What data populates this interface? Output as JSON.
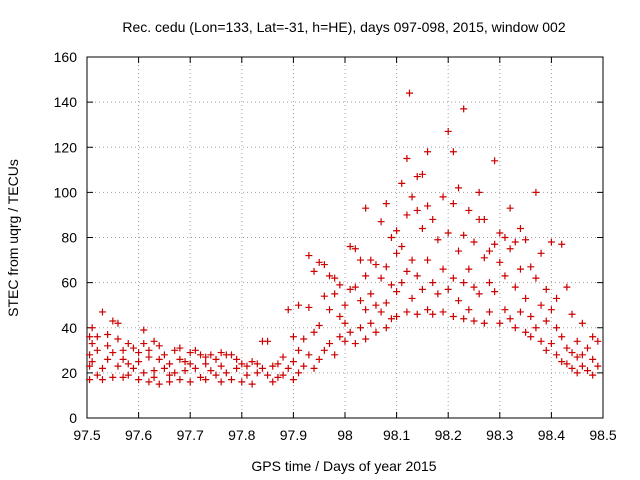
{
  "chart_data": {
    "type": "scatter",
    "title": "Rec. cedu (Lon=133, Lat=-31, h=HE), days 097-098, 2015, window 002",
    "xlabel": "GPS time / Days of year 2015",
    "ylabel": "STEC from uqrg / TECUs",
    "xlim": [
      97.5,
      98.5
    ],
    "ylim": [
      0,
      160
    ],
    "xticks": [
      97.5,
      97.6,
      97.7,
      97.8,
      97.9,
      98,
      98.1,
      98.2,
      98.3,
      98.4,
      98.5
    ],
    "xtick_labels": [
      "97.5",
      "97.6",
      "97.7",
      "97.8",
      "97.9",
      "98",
      "98.1",
      "98.2",
      "98.3",
      "98.4",
      "98.5"
    ],
    "yticks": [
      0,
      20,
      40,
      60,
      80,
      100,
      120,
      140,
      160
    ],
    "ytick_labels": [
      "0",
      "20",
      "40",
      "60",
      "80",
      "100",
      "120",
      "140",
      "160"
    ],
    "grid": true,
    "marker": "+",
    "marker_color": "#cc0000",
    "series": [
      {
        "name": "STEC",
        "points": [
          [
            97.505,
            36
          ],
          [
            97.505,
            28
          ],
          [
            97.505,
            23
          ],
          [
            97.505,
            17
          ],
          [
            97.51,
            40
          ],
          [
            97.51,
            33
          ],
          [
            97.51,
            25
          ],
          [
            97.52,
            30
          ],
          [
            97.52,
            36
          ],
          [
            97.52,
            19
          ],
          [
            97.53,
            47
          ],
          [
            97.53,
            22
          ],
          [
            97.53,
            17
          ],
          [
            97.54,
            37
          ],
          [
            97.54,
            32
          ],
          [
            97.54,
            26
          ],
          [
            97.55,
            43
          ],
          [
            97.55,
            29
          ],
          [
            97.55,
            18
          ],
          [
            97.56,
            42
          ],
          [
            97.56,
            35
          ],
          [
            97.56,
            23
          ],
          [
            97.57,
            30
          ],
          [
            97.57,
            26
          ],
          [
            97.57,
            18
          ],
          [
            97.58,
            33
          ],
          [
            97.58,
            24
          ],
          [
            97.58,
            19
          ],
          [
            97.59,
            31
          ],
          [
            97.59,
            22
          ],
          [
            97.6,
            29
          ],
          [
            97.6,
            25
          ],
          [
            97.6,
            17
          ],
          [
            97.61,
            39
          ],
          [
            97.61,
            33
          ],
          [
            97.61,
            20
          ],
          [
            97.62,
            30
          ],
          [
            97.62,
            27
          ],
          [
            97.62,
            16
          ],
          [
            97.63,
            34
          ],
          [
            97.63,
            21
          ],
          [
            97.63,
            18
          ],
          [
            97.64,
            32
          ],
          [
            97.64,
            26
          ],
          [
            97.64,
            15
          ],
          [
            97.65,
            28
          ],
          [
            97.65,
            22
          ],
          [
            97.66,
            24
          ],
          [
            97.66,
            19
          ],
          [
            97.66,
            16
          ],
          [
            97.67,
            30
          ],
          [
            97.67,
            20
          ],
          [
            97.68,
            31
          ],
          [
            97.68,
            26
          ],
          [
            97.68,
            17
          ],
          [
            97.69,
            25
          ],
          [
            97.69,
            21
          ],
          [
            97.7,
            29
          ],
          [
            97.7,
            24
          ],
          [
            97.7,
            16
          ],
          [
            97.71,
            30
          ],
          [
            97.71,
            22
          ],
          [
            97.72,
            28
          ],
          [
            97.72,
            18
          ],
          [
            97.73,
            27
          ],
          [
            97.73,
            24
          ],
          [
            97.73,
            17
          ],
          [
            97.74,
            28
          ],
          [
            97.74,
            21
          ],
          [
            97.75,
            26
          ],
          [
            97.75,
            19
          ],
          [
            97.76,
            29
          ],
          [
            97.76,
            23
          ],
          [
            97.76,
            16
          ],
          [
            97.77,
            28
          ],
          [
            97.77,
            20
          ],
          [
            97.78,
            28
          ],
          [
            97.78,
            17
          ],
          [
            97.79,
            26
          ],
          [
            97.79,
            22
          ],
          [
            97.8,
            24
          ],
          [
            97.8,
            16
          ],
          [
            97.81,
            23
          ],
          [
            97.81,
            19
          ],
          [
            97.82,
            25
          ],
          [
            97.82,
            15
          ],
          [
            97.83,
            24
          ],
          [
            97.83,
            20
          ],
          [
            97.84,
            34
          ],
          [
            97.84,
            22
          ],
          [
            97.85,
            34
          ],
          [
            97.85,
            19
          ],
          [
            97.86,
            23
          ],
          [
            97.86,
            16
          ],
          [
            97.87,
            24
          ],
          [
            97.87,
            18
          ],
          [
            97.88,
            27
          ],
          [
            97.88,
            19
          ],
          [
            97.89,
            48
          ],
          [
            97.89,
            22
          ],
          [
            97.9,
            36
          ],
          [
            97.9,
            25
          ],
          [
            97.9,
            17
          ],
          [
            97.91,
            50
          ],
          [
            97.91,
            30
          ],
          [
            97.91,
            20
          ],
          [
            97.92,
            35
          ],
          [
            97.92,
            23
          ],
          [
            97.93,
            72
          ],
          [
            97.93,
            49
          ],
          [
            97.93,
            28
          ],
          [
            97.94,
            65
          ],
          [
            97.94,
            38
          ],
          [
            97.94,
            22
          ],
          [
            97.95,
            69
          ],
          [
            97.95,
            41
          ],
          [
            97.95,
            26
          ],
          [
            97.96,
            68
          ],
          [
            97.96,
            54
          ],
          [
            97.96,
            30
          ],
          [
            97.97,
            63
          ],
          [
            97.97,
            48
          ],
          [
            97.97,
            33
          ],
          [
            97.98,
            62
          ],
          [
            97.98,
            55
          ],
          [
            97.98,
            28
          ],
          [
            97.99,
            59
          ],
          [
            97.99,
            45
          ],
          [
            97.99,
            36
          ],
          [
            98.0,
            50
          ],
          [
            98.0,
            42
          ],
          [
            98.0,
            34
          ],
          [
            98.01,
            76
          ],
          [
            98.01,
            57
          ],
          [
            98.01,
            38
          ],
          [
            98.02,
            75
          ],
          [
            98.02,
            58
          ],
          [
            98.02,
            33
          ],
          [
            98.03,
            70
          ],
          [
            98.03,
            52
          ],
          [
            98.03,
            40
          ],
          [
            98.04,
            93
          ],
          [
            98.04,
            63
          ],
          [
            98.04,
            48
          ],
          [
            98.04,
            35
          ],
          [
            98.05,
            70
          ],
          [
            98.05,
            55
          ],
          [
            98.05,
            42
          ],
          [
            98.06,
            68
          ],
          [
            98.06,
            50
          ],
          [
            98.06,
            38
          ],
          [
            98.07,
            87
          ],
          [
            98.07,
            62
          ],
          [
            98.07,
            47
          ],
          [
            98.08,
            95
          ],
          [
            98.08,
            67
          ],
          [
            98.08,
            51
          ],
          [
            98.08,
            40
          ],
          [
            98.09,
            80
          ],
          [
            98.09,
            59
          ],
          [
            98.09,
            44
          ],
          [
            98.1,
            83
          ],
          [
            98.1,
            73
          ],
          [
            98.1,
            56
          ],
          [
            98.1,
            45
          ],
          [
            98.11,
            104
          ],
          [
            98.11,
            76
          ],
          [
            98.11,
            60
          ],
          [
            98.12,
            115
          ],
          [
            98.12,
            90
          ],
          [
            98.12,
            65
          ],
          [
            98.12,
            47
          ],
          [
            98.125,
            144
          ],
          [
            98.13,
            98
          ],
          [
            98.13,
            70
          ],
          [
            98.13,
            53
          ],
          [
            98.14,
            107
          ],
          [
            98.14,
            92
          ],
          [
            98.14,
            63
          ],
          [
            98.14,
            46
          ],
          [
            98.15,
            108
          ],
          [
            98.15,
            84
          ],
          [
            98.15,
            57
          ],
          [
            98.16,
            118
          ],
          [
            98.16,
            94
          ],
          [
            98.16,
            70
          ],
          [
            98.16,
            48
          ],
          [
            98.17,
            88
          ],
          [
            98.17,
            60
          ],
          [
            98.17,
            46
          ],
          [
            98.18,
            79
          ],
          [
            98.18,
            55
          ],
          [
            98.19,
            98
          ],
          [
            98.19,
            66
          ],
          [
            98.19,
            47
          ],
          [
            98.2,
            127
          ],
          [
            98.2,
            82
          ],
          [
            98.2,
            57
          ],
          [
            98.21,
            118
          ],
          [
            98.21,
            95
          ],
          [
            98.21,
            62
          ],
          [
            98.21,
            45
          ],
          [
            98.22,
            102
          ],
          [
            98.22,
            74
          ],
          [
            98.22,
            52
          ],
          [
            98.23,
            137
          ],
          [
            98.23,
            81
          ],
          [
            98.23,
            60
          ],
          [
            98.23,
            44
          ],
          [
            98.24,
            92
          ],
          [
            98.24,
            66
          ],
          [
            98.24,
            48
          ],
          [
            98.25,
            78
          ],
          [
            98.25,
            58
          ],
          [
            98.25,
            43
          ],
          [
            98.26,
            100
          ],
          [
            98.26,
            88
          ],
          [
            98.26,
            55
          ],
          [
            98.27,
            88
          ],
          [
            98.27,
            71
          ],
          [
            98.27,
            42
          ],
          [
            98.28,
            74
          ],
          [
            98.28,
            60
          ],
          [
            98.28,
            47
          ],
          [
            98.29,
            114
          ],
          [
            98.29,
            77
          ],
          [
            98.29,
            56
          ],
          [
            98.3,
            82
          ],
          [
            98.3,
            69
          ],
          [
            98.3,
            42
          ],
          [
            98.31,
            80
          ],
          [
            98.31,
            63
          ],
          [
            98.31,
            48
          ],
          [
            98.32,
            93
          ],
          [
            98.32,
            75
          ],
          [
            98.32,
            44
          ],
          [
            98.33,
            78
          ],
          [
            98.33,
            58
          ],
          [
            98.33,
            40
          ],
          [
            98.34,
            84
          ],
          [
            98.34,
            66
          ],
          [
            98.34,
            47
          ],
          [
            98.35,
            79
          ],
          [
            98.35,
            53
          ],
          [
            98.35,
            38
          ],
          [
            98.36,
            67
          ],
          [
            98.36,
            45
          ],
          [
            98.36,
            36
          ],
          [
            98.37,
            100
          ],
          [
            98.37,
            62
          ],
          [
            98.37,
            40
          ],
          [
            98.38,
            73
          ],
          [
            98.38,
            50
          ],
          [
            98.38,
            34
          ],
          [
            98.39,
            57
          ],
          [
            98.39,
            43
          ],
          [
            98.39,
            30
          ],
          [
            98.4,
            78
          ],
          [
            98.4,
            48
          ],
          [
            98.4,
            33
          ],
          [
            98.41,
            53
          ],
          [
            98.41,
            40
          ],
          [
            98.41,
            28
          ],
          [
            98.42,
            77
          ],
          [
            98.42,
            36
          ],
          [
            98.42,
            25
          ],
          [
            98.43,
            58
          ],
          [
            98.43,
            31
          ],
          [
            98.43,
            24
          ],
          [
            98.44,
            46
          ],
          [
            98.44,
            29
          ],
          [
            98.44,
            22
          ],
          [
            98.45,
            34
          ],
          [
            98.45,
            27
          ],
          [
            98.45,
            20
          ],
          [
            98.46,
            42
          ],
          [
            98.46,
            28
          ],
          [
            98.46,
            23
          ],
          [
            98.47,
            31
          ],
          [
            98.47,
            21
          ],
          [
            98.48,
            36
          ],
          [
            98.48,
            26
          ],
          [
            98.48,
            19
          ],
          [
            98.49,
            34
          ],
          [
            98.49,
            23
          ]
        ]
      }
    ]
  }
}
